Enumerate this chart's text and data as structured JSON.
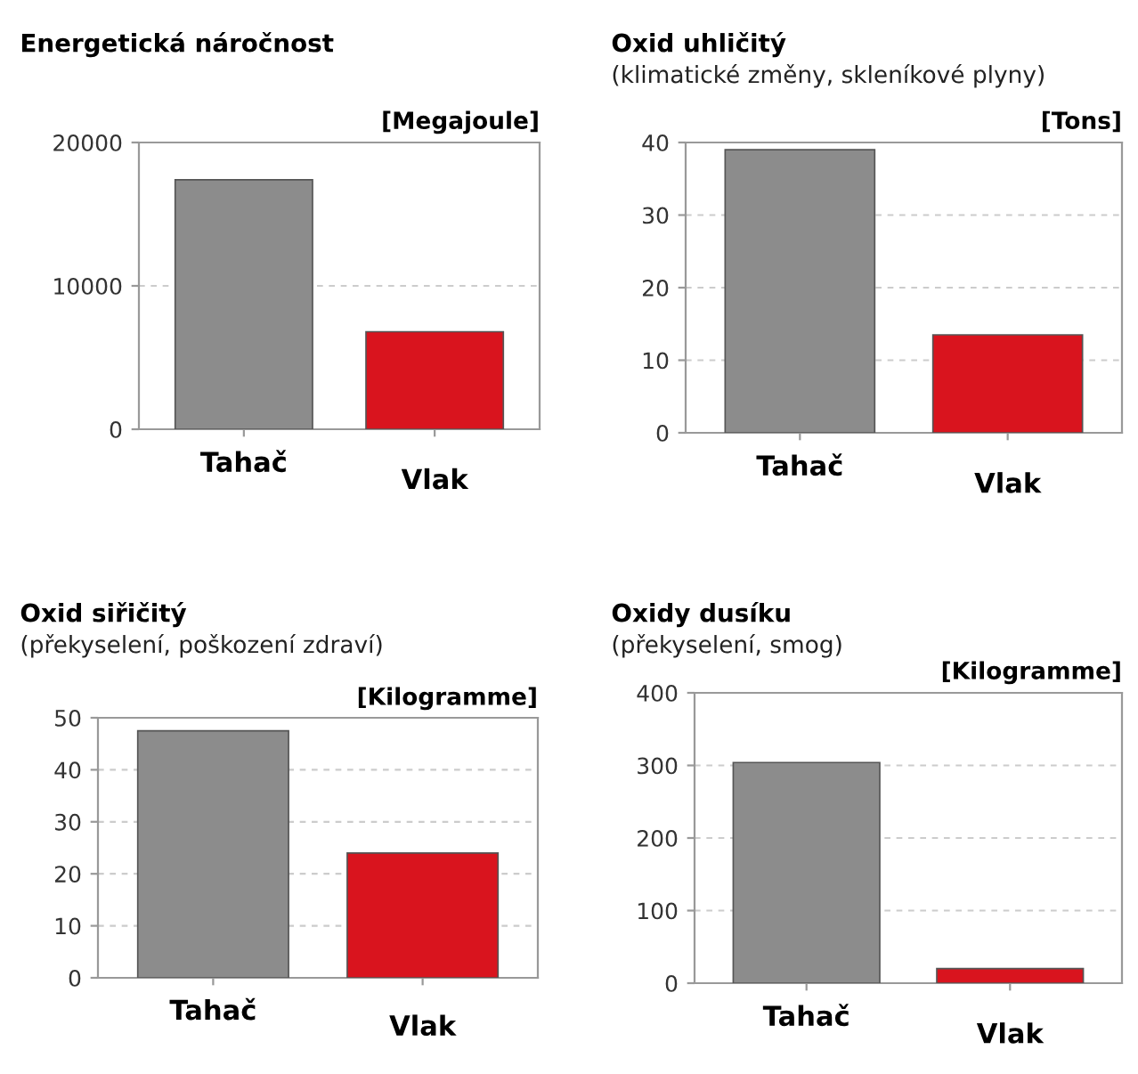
{
  "chart_data": [
    {
      "type": "bar",
      "title": "Energetická náročnost",
      "ylabel": "[Megajoule]",
      "categories": [
        "Tahač",
        "Vlak"
      ],
      "values": [
        17400,
        6800
      ],
      "colors": [
        "#8c8c8c",
        "#d9141e"
      ],
      "ylim": [
        0,
        20000
      ],
      "yticks": [
        0,
        10000,
        20000
      ],
      "grid": "y"
    },
    {
      "type": "bar",
      "title": "Oxid uhličitý",
      "subtitle": "(klimatické změny, skleníkové plyny)",
      "ylabel": "[Tons]",
      "categories": [
        "Tahač",
        "Vlak"
      ],
      "values": [
        39,
        13.5
      ],
      "colors": [
        "#8c8c8c",
        "#d9141e"
      ],
      "ylim": [
        0,
        40
      ],
      "yticks": [
        0,
        10,
        20,
        30,
        40
      ],
      "grid": "y"
    },
    {
      "type": "bar",
      "title": "Oxid siřičitý",
      "subtitle": "(překyselení, poškození zdraví)",
      "ylabel": "[Kilogramme]",
      "categories": [
        "Tahač",
        "Vlak"
      ],
      "values": [
        47.5,
        24
      ],
      "colors": [
        "#8c8c8c",
        "#d9141e"
      ],
      "ylim": [
        0,
        50
      ],
      "yticks": [
        0,
        10,
        20,
        30,
        40,
        50
      ],
      "grid": "y"
    },
    {
      "type": "bar",
      "title": "Oxidy dusíku",
      "subtitle": "(překyselení, smog)",
      "ylabel": "[Kilogramme]",
      "categories": [
        "Tahač",
        "Vlak"
      ],
      "values": [
        304,
        20
      ],
      "colors": [
        "#8c8c8c",
        "#d9141e"
      ],
      "ylim": [
        0,
        400
      ],
      "yticks": [
        0,
        100,
        200,
        300,
        400
      ],
      "grid": "y"
    }
  ]
}
